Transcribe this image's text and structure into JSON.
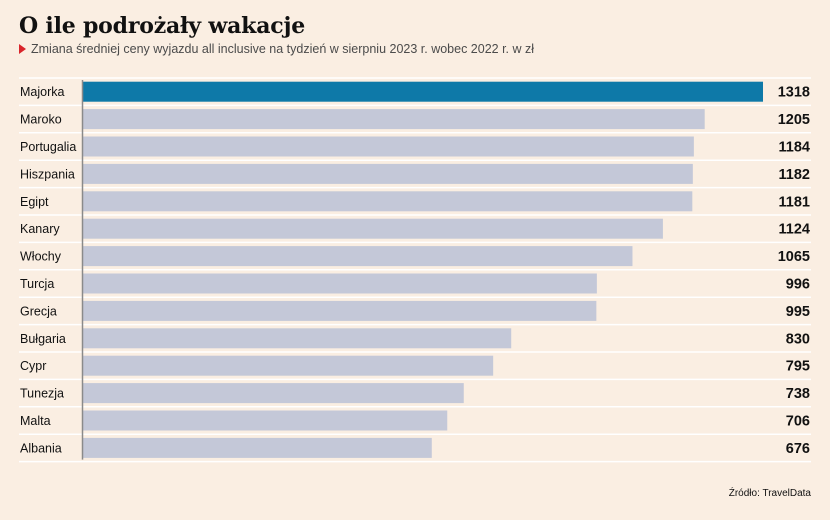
{
  "title": "O ile podrożały wakacje",
  "subtitle": "Zmiana średniej ceny wyjazdu all inclusive na tydzień w sierpniu 2023 r. wobec 2022 r. w zł",
  "source": "Źródło: TravelData",
  "colors": {
    "highlight": "#0e79a8",
    "bar": "#c4c8d8",
    "divider": "#ffffff",
    "axis": "#8a8a8a"
  },
  "chart_data": {
    "type": "bar",
    "orientation": "horizontal",
    "categories": [
      "Majorka",
      "Maroko",
      "Portugalia",
      "Hiszpania",
      "Egipt",
      "Kanary",
      "Włochy",
      "Turcja",
      "Grecja",
      "Bułgaria",
      "Cypr",
      "Tunezja",
      "Malta",
      "Albania"
    ],
    "values": [
      1318,
      1205,
      1184,
      1182,
      1181,
      1124,
      1065,
      996,
      995,
      830,
      795,
      738,
      706,
      676
    ],
    "highlighted_category": "Majorka",
    "xlim": [
      0,
      1318
    ],
    "grid": false,
    "data_labels": true
  }
}
